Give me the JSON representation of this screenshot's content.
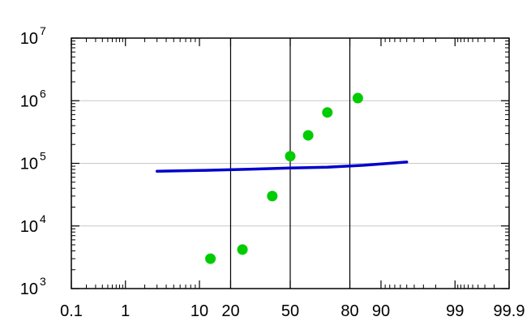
{
  "chart_data": {
    "type": "scatter",
    "title": "",
    "xlabel": "",
    "ylabel": "",
    "x_scale": "probability",
    "y_scale": "log",
    "xlim": [
      0.1,
      99.9
    ],
    "ylim": [
      1000,
      10000000
    ],
    "x_ticks": [
      {
        "value": 0.1,
        "label": "0.1"
      },
      {
        "value": 1,
        "label": "1"
      },
      {
        "value": 10,
        "label": "10"
      },
      {
        "value": 20,
        "label": "20"
      },
      {
        "value": 50,
        "label": "50"
      },
      {
        "value": 80,
        "label": "80"
      },
      {
        "value": 90,
        "label": "90"
      },
      {
        "value": 99,
        "label": "99"
      },
      {
        "value": 99.9,
        "label": "99.9"
      }
    ],
    "y_ticks": [
      {
        "value": 1000,
        "base": "10",
        "exp": "3"
      },
      {
        "value": 10000,
        "base": "10",
        "exp": "4"
      },
      {
        "value": 100000,
        "base": "10",
        "exp": "5"
      },
      {
        "value": 1000000,
        "base": "10",
        "exp": "6"
      },
      {
        "value": 10000000,
        "base": "10",
        "exp": "7"
      }
    ],
    "vertical_lines": [
      20,
      50,
      80
    ],
    "horizontal_grid": [
      10000,
      100000,
      1000000
    ],
    "grid_color": "#c8c8c8",
    "series": [
      {
        "kind": "points",
        "color": "#00cc00",
        "points": [
          {
            "x": 13,
            "y": 3000
          },
          {
            "x": 25,
            "y": 4200
          },
          {
            "x": 40,
            "y": 30000
          },
          {
            "x": 50,
            "y": 130000
          },
          {
            "x": 60,
            "y": 280000
          },
          {
            "x": 70,
            "y": 650000
          },
          {
            "x": 83,
            "y": 1100000
          }
        ]
      },
      {
        "kind": "line",
        "color": "#0000cc",
        "points": [
          {
            "x": 3,
            "y": 75000
          },
          {
            "x": 10,
            "y": 77000
          },
          {
            "x": 30,
            "y": 81000
          },
          {
            "x": 50,
            "y": 84000
          },
          {
            "x": 70,
            "y": 87000
          },
          {
            "x": 85,
            "y": 93000
          },
          {
            "x": 95,
            "y": 105000
          }
        ]
      }
    ]
  }
}
